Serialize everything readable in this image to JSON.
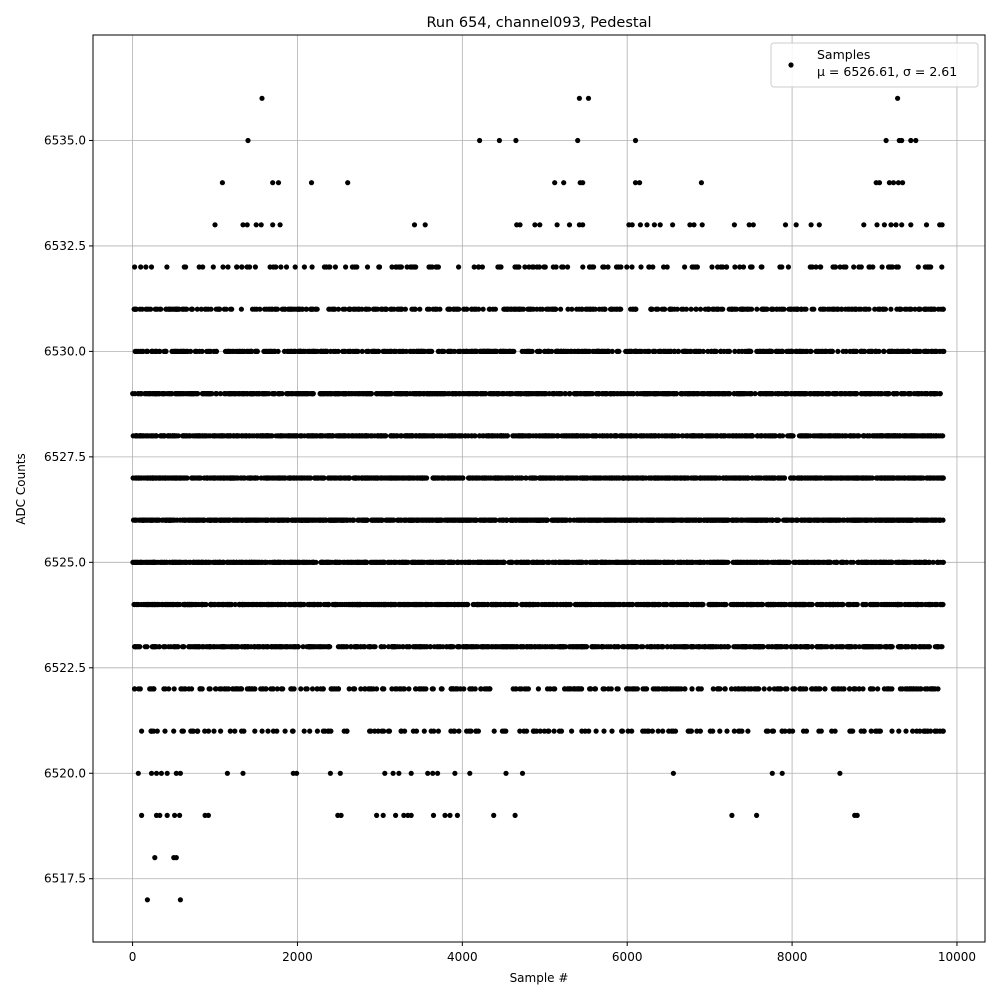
{
  "chart_data": {
    "type": "scatter",
    "title": "Run 654, channel093, Pedestal",
    "xlabel": "Sample #",
    "ylabel": "ADC Counts",
    "xlim": [
      -480,
      10340
    ],
    "ylim": [
      6516.0,
      6537.5
    ],
    "x_ticks": [
      0,
      2000,
      4000,
      6000,
      8000,
      10000
    ],
    "y_ticks": [
      6517.5,
      6520.0,
      6522.5,
      6525.0,
      6527.5,
      6530.0,
      6532.5,
      6535.0
    ],
    "y_tick_labels": [
      "6517.5",
      "6520.0",
      "6522.5",
      "6525.0",
      "6527.5",
      "6530.0",
      "6532.5",
      "6535.0"
    ],
    "grid": true,
    "legend_position": "top-right",
    "colors": {
      "marker": "#000000",
      "grid": "#b0b0b0"
    },
    "series": [
      {
        "name": "Samples",
        "stats_label": "μ = 6526.61, σ = 2.61",
        "mean": 6526.61,
        "sigma": 2.61,
        "x_range": [
          0,
          9840
        ],
        "dense_levels": [
          6521,
          6522,
          6523,
          6524,
          6525,
          6526,
          6527,
          6528,
          6529,
          6530,
          6531,
          6532
        ],
        "sparse_points": [
          [
            1570,
            6536
          ],
          [
            5420,
            6536
          ],
          [
            5530,
            6536
          ],
          [
            9280,
            6536
          ],
          [
            1400,
            6535
          ],
          [
            4210,
            6535
          ],
          [
            4450,
            6535
          ],
          [
            4650,
            6535
          ],
          [
            5400,
            6535
          ],
          [
            6100,
            6535
          ],
          [
            9140,
            6535
          ],
          [
            9300,
            6535
          ],
          [
            9330,
            6535
          ],
          [
            9440,
            6535
          ],
          [
            9500,
            6535
          ],
          [
            1090,
            6534
          ],
          [
            1700,
            6534
          ],
          [
            1770,
            6534
          ],
          [
            2170,
            6534
          ],
          [
            2610,
            6534
          ],
          [
            5120,
            6534
          ],
          [
            5230,
            6534
          ],
          [
            5430,
            6534
          ],
          [
            5460,
            6534
          ],
          [
            6100,
            6534
          ],
          [
            6150,
            6534
          ],
          [
            6900,
            6534
          ],
          [
            9020,
            6534
          ],
          [
            9060,
            6534
          ],
          [
            9180,
            6534
          ],
          [
            9230,
            6534
          ],
          [
            9290,
            6534
          ],
          [
            9340,
            6534
          ],
          [
            1000,
            6533
          ],
          [
            1340,
            6533
          ],
          [
            1390,
            6533
          ],
          [
            1500,
            6533
          ],
          [
            1560,
            6533
          ],
          [
            1700,
            6533
          ],
          [
            1790,
            6533
          ],
          [
            3420,
            6533
          ],
          [
            3550,
            6533
          ],
          [
            4660,
            6533
          ],
          [
            4700,
            6533
          ],
          [
            4880,
            6533
          ],
          [
            4940,
            6533
          ],
          [
            5150,
            6533
          ],
          [
            5300,
            6533
          ],
          [
            5420,
            6533
          ],
          [
            5460,
            6533
          ],
          [
            6020,
            6533
          ],
          [
            6060,
            6533
          ],
          [
            6160,
            6533
          ],
          [
            6240,
            6533
          ],
          [
            6330,
            6533
          ],
          [
            6400,
            6533
          ],
          [
            6550,
            6533
          ],
          [
            6760,
            6533
          ],
          [
            6810,
            6533
          ],
          [
            6910,
            6533
          ],
          [
            7300,
            6533
          ],
          [
            7480,
            6533
          ],
          [
            7530,
            6533
          ],
          [
            7920,
            6533
          ],
          [
            8050,
            6533
          ],
          [
            8230,
            6533
          ],
          [
            8330,
            6533
          ],
          [
            8870,
            6533
          ],
          [
            9030,
            6533
          ],
          [
            9120,
            6533
          ],
          [
            9200,
            6533
          ],
          [
            9260,
            6533
          ],
          [
            9330,
            6533
          ],
          [
            9440,
            6533
          ],
          [
            9630,
            6533
          ],
          [
            9790,
            6533
          ],
          [
            9820,
            6533
          ],
          [
            70,
            6530
          ],
          [
            2980,
            6530
          ],
          [
            3140,
            6530
          ],
          [
            3320,
            6530
          ],
          [
            3590,
            6530
          ],
          [
            70,
            6520
          ],
          [
            230,
            6520
          ],
          [
            290,
            6520
          ],
          [
            350,
            6520
          ],
          [
            420,
            6520
          ],
          [
            530,
            6520
          ],
          [
            580,
            6520
          ],
          [
            1150,
            6520
          ],
          [
            1340,
            6520
          ],
          [
            1950,
            6520
          ],
          [
            1990,
            6520
          ],
          [
            2400,
            6520
          ],
          [
            2520,
            6520
          ],
          [
            3060,
            6520
          ],
          [
            3160,
            6520
          ],
          [
            3230,
            6520
          ],
          [
            3380,
            6520
          ],
          [
            3580,
            6520
          ],
          [
            3640,
            6520
          ],
          [
            3700,
            6520
          ],
          [
            3910,
            6520
          ],
          [
            4090,
            6520
          ],
          [
            4530,
            6520
          ],
          [
            4730,
            6520
          ],
          [
            6560,
            6520
          ],
          [
            7760,
            6520
          ],
          [
            7880,
            6520
          ],
          [
            8580,
            6520
          ],
          [
            110,
            6519
          ],
          [
            290,
            6519
          ],
          [
            330,
            6519
          ],
          [
            420,
            6519
          ],
          [
            510,
            6519
          ],
          [
            570,
            6519
          ],
          [
            880,
            6519
          ],
          [
            920,
            6519
          ],
          [
            2490,
            6519
          ],
          [
            2530,
            6519
          ],
          [
            2960,
            6519
          ],
          [
            3040,
            6519
          ],
          [
            3190,
            6519
          ],
          [
            3290,
            6519
          ],
          [
            3340,
            6519
          ],
          [
            3380,
            6519
          ],
          [
            3650,
            6519
          ],
          [
            3790,
            6519
          ],
          [
            3850,
            6519
          ],
          [
            3940,
            6519
          ],
          [
            4380,
            6519
          ],
          [
            4640,
            6519
          ],
          [
            7270,
            6519
          ],
          [
            7570,
            6519
          ],
          [
            8760,
            6519
          ],
          [
            8790,
            6519
          ],
          [
            270,
            6518
          ],
          [
            500,
            6518
          ],
          [
            530,
            6518
          ],
          [
            180,
            6517
          ],
          [
            580,
            6517
          ]
        ]
      }
    ]
  }
}
